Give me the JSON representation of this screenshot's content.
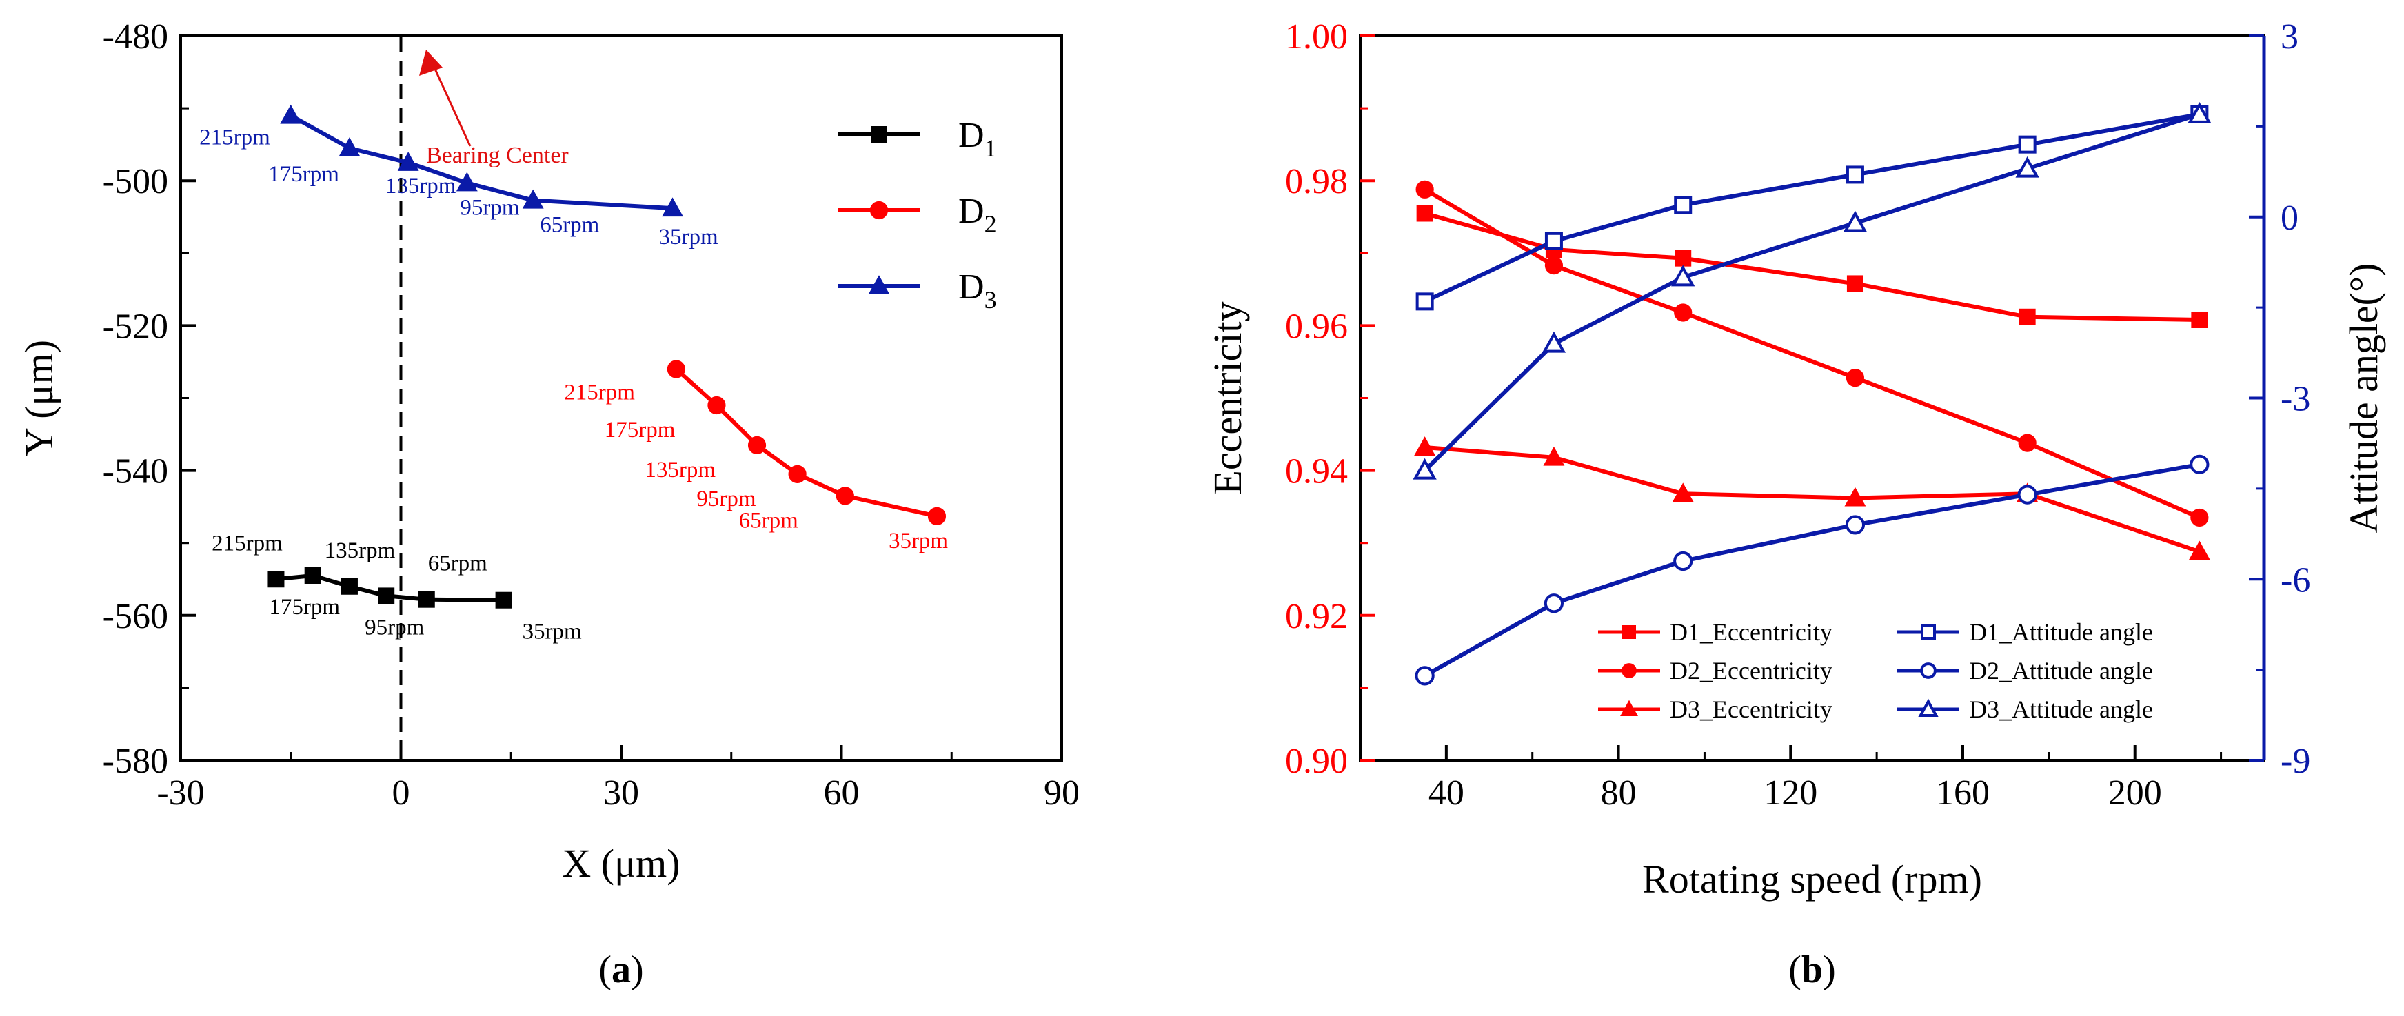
{
  "colors": {
    "black": "#000000",
    "red": "#ff0000",
    "blue": "#0a1aa8",
    "annot_red": "#e01010"
  },
  "panels": {
    "a": {
      "label_open": "(",
      "letter": "a",
      "label_close": ")"
    },
    "b": {
      "label_open": "(",
      "letter": "b",
      "label_close": ")"
    }
  },
  "chart_data": [
    {
      "id": "a",
      "type": "line",
      "xlabel": "X (μm)",
      "ylabel": "Y (μm)",
      "xlim": [
        -30,
        90
      ],
      "ylim": [
        -580,
        -480
      ],
      "xticks": [
        -30,
        0,
        30,
        60,
        90
      ],
      "yticks": [
        -480,
        -500,
        -520,
        -540,
        -560,
        -580
      ],
      "grid": false,
      "legend_position": "top-right",
      "legend": [
        {
          "name": "D",
          "sub": "1",
          "color": "#000000",
          "marker": "square"
        },
        {
          "name": "D",
          "sub": "2",
          "color": "#ff0000",
          "marker": "circle"
        },
        {
          "name": "D",
          "sub": "3",
          "color": "#0a1aa8",
          "marker": "triangle"
        }
      ],
      "series": [
        {
          "name": "D1",
          "color": "#000000",
          "marker": "square",
          "x": [
            -17,
            -12,
            -7,
            -2,
            3.5,
            14
          ],
          "y": [
            -555,
            -554.5,
            -556,
            -557.3,
            -557.8,
            -557.9
          ],
          "labels": [
            "215rpm",
            "175rpm",
            "135rpm",
            "95rpm",
            "65rpm",
            "35rpm"
          ]
        },
        {
          "name": "D2",
          "color": "#ff0000",
          "marker": "circle",
          "x": [
            37.5,
            43,
            48.5,
            54,
            60.5,
            73
          ],
          "y": [
            -526,
            -531,
            -536.5,
            -540.5,
            -543.5,
            -546.3
          ],
          "labels": [
            "215rpm",
            "175rpm",
            "135rpm",
            "95rpm",
            "65rpm",
            "35rpm"
          ]
        },
        {
          "name": "D3",
          "color": "#0a1aa8",
          "marker": "triangle",
          "x": [
            -15,
            -7,
            1,
            9,
            18,
            37
          ],
          "y": [
            -491,
            -495.5,
            -497.5,
            -500.3,
            -502.7,
            -503.8
          ],
          "labels": [
            "215rpm",
            "175rpm",
            "135rpm",
            "95rpm",
            "65rpm",
            "35rpm"
          ]
        }
      ],
      "reference_line": {
        "x": 0,
        "style": "dashed"
      },
      "annotation": {
        "text": "Bearing Center",
        "color": "#e01010"
      }
    },
    {
      "id": "b",
      "type": "line",
      "xlabel": "Rotating speed (rpm)",
      "ylabel": "Eccentricity",
      "y2label": "Attitude angle(°)",
      "xlim": [
        20,
        230
      ],
      "ylim": [
        0.9,
        1.0
      ],
      "y2lim": [
        -9,
        3
      ],
      "xticks": [
        40,
        80,
        120,
        160,
        200
      ],
      "yticks": [
        "0.90",
        "0.92",
        "0.94",
        "0.96",
        "0.98",
        "1.00"
      ],
      "y2ticks": [
        -9,
        -6,
        -3,
        0,
        3
      ],
      "grid": false,
      "legend_position": "bottom-right",
      "x": [
        35,
        65,
        95,
        135,
        175,
        215
      ],
      "series": [
        {
          "name": "D1_Eccentricity",
          "axis": "left",
          "color": "#ff0000",
          "marker": "square",
          "filled": true,
          "values": [
            0.9755,
            0.9705,
            0.9693,
            0.9658,
            0.9612,
            0.9608
          ]
        },
        {
          "name": "D2_Eccentricity",
          "axis": "left",
          "color": "#ff0000",
          "marker": "circle",
          "filled": true,
          "values": [
            0.9788,
            0.9683,
            0.9618,
            0.9528,
            0.9438,
            0.9335
          ]
        },
        {
          "name": "D3_Eccentricity",
          "axis": "left",
          "color": "#ff0000",
          "marker": "triangle",
          "filled": true,
          "values": [
            0.9432,
            0.9418,
            0.9368,
            0.9362,
            0.9368,
            0.9288
          ]
        },
        {
          "name": "D1_Attitude angle",
          "axis": "right",
          "color": "#0a1aa8",
          "marker": "square",
          "filled": false,
          "values": [
            -1.4,
            -0.4,
            0.2,
            0.7,
            1.2,
            1.7
          ]
        },
        {
          "name": "D2_Attitude angle",
          "axis": "right",
          "color": "#0a1aa8",
          "marker": "circle",
          "filled": false,
          "values": [
            -7.6,
            -6.4,
            -5.7,
            -5.1,
            -4.6,
            -4.1
          ]
        },
        {
          "name": "D3_Attitude angle",
          "axis": "right",
          "color": "#0a1aa8",
          "marker": "triangle",
          "filled": false,
          "values": [
            -4.2,
            -2.1,
            -1.0,
            -0.1,
            0.8,
            1.7
          ]
        }
      ]
    }
  ]
}
